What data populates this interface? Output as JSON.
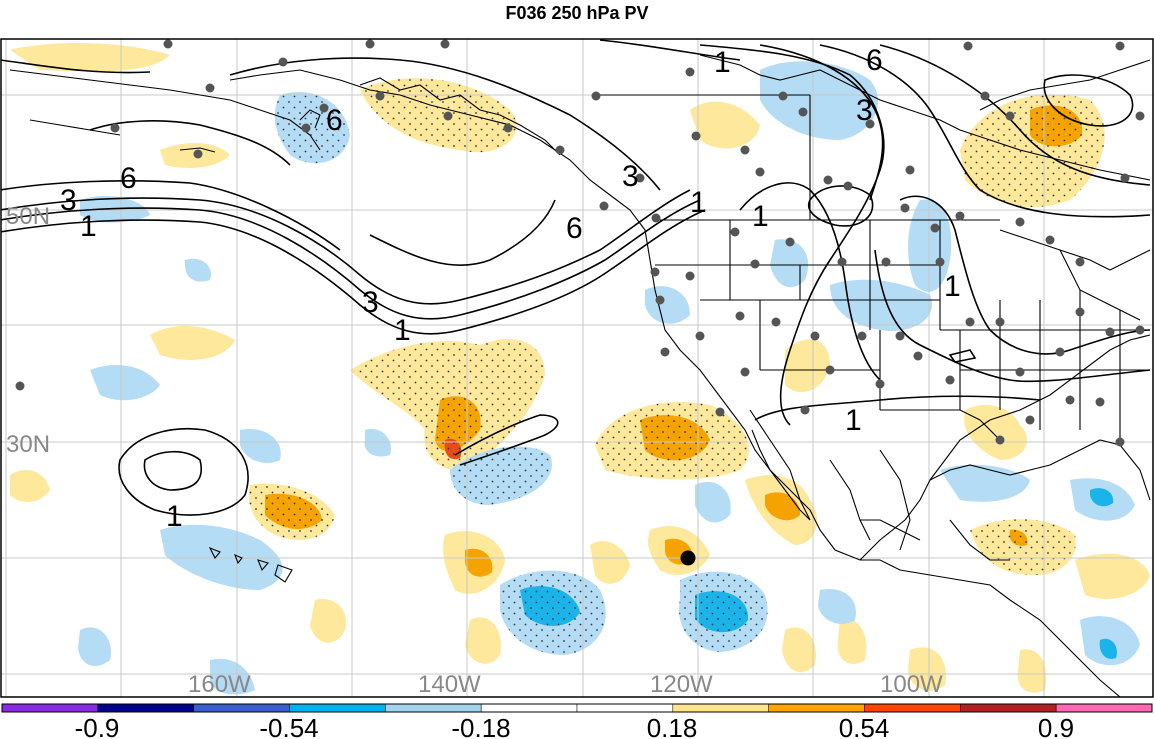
{
  "title": "F036 250 hPa PV",
  "lat_labels": [
    "50N",
    "30N"
  ],
  "lon_labels": [
    "160W",
    "140W",
    "120W",
    "100W"
  ],
  "contour_labels": [
    "6",
    "3",
    "1",
    "6",
    "3",
    "1",
    "6",
    "3",
    "1",
    "6",
    "3",
    "1",
    "1",
    "1",
    "1",
    "1"
  ],
  "colorbar": {
    "colors": [
      "#8a2be2",
      "#00008b",
      "#3a5fcd",
      "#00b2ee",
      "#a4d3ee",
      "#ffffff",
      "#ffffff",
      "#ffe58a",
      "#ffa500",
      "#ff4500",
      "#b22222",
      "#ff69b4"
    ],
    "labels": [
      "-0.9",
      "-0.54",
      "-0.18",
      "0.18",
      "0.54",
      "0.9"
    ]
  },
  "colors": {
    "land_line": "#000000",
    "grid": "#c8c8c8",
    "station": "#555555",
    "pos_light": "#fde89b",
    "pos_mid": "#f5a300",
    "pos_high": "#e84a1a",
    "neg_light": "#b5dcf5",
    "neg_mid": "#1ab3ea"
  }
}
